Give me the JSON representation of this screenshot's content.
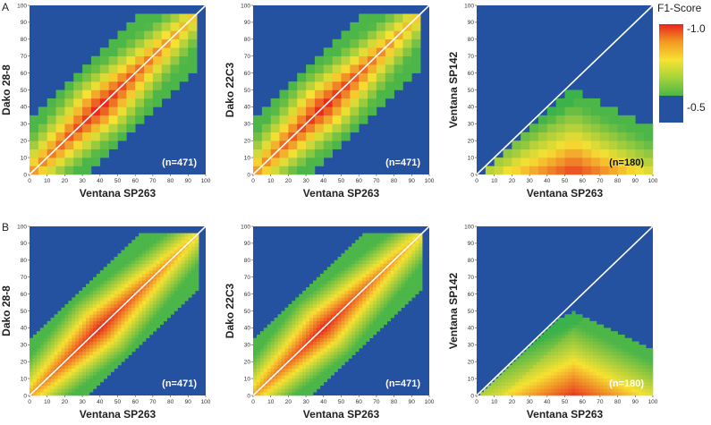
{
  "colors": {
    "background": "#2452a1",
    "diagonal": "#ffffff",
    "high": "#e8231c",
    "mid": "#f7e232",
    "low": "#4cb648"
  },
  "panel_labels": {
    "a": "A",
    "b": "B"
  },
  "legend": {
    "title": "F1-Score",
    "max_label": "-1.0",
    "min_label": "-0.5"
  },
  "chart_data": [
    {
      "type": "heatmap",
      "row": "A",
      "xlabel": "Ventana SP263",
      "ylabel": "Dako 28-8",
      "annotation": "(n=471)",
      "xlim": [
        0,
        100
      ],
      "ylim": [
        0,
        100
      ],
      "ticks": [
        0,
        10,
        20,
        30,
        40,
        50,
        60,
        70,
        80,
        90,
        100
      ],
      "grid_step": 5,
      "model": "equal",
      "spread": 22
    },
    {
      "type": "heatmap",
      "row": "A",
      "xlabel": "Ventana SP263",
      "ylabel": "Dako 22C3",
      "annotation": "(n=471)",
      "xlim": [
        0,
        100
      ],
      "ylim": [
        0,
        100
      ],
      "ticks": [
        0,
        10,
        20,
        30,
        40,
        50,
        60,
        70,
        80,
        90,
        100
      ],
      "grid_step": 5,
      "model": "equal",
      "spread": 22
    },
    {
      "type": "heatmap",
      "row": "A",
      "xlabel": "Ventana SP263",
      "ylabel": "Ventana SP142",
      "annotation": "(n=180)",
      "xlim": [
        0,
        100
      ],
      "ylim": [
        0,
        100
      ],
      "ticks": [
        0,
        10,
        20,
        30,
        40,
        50,
        60,
        70,
        80,
        90,
        100
      ],
      "grid_step": 5,
      "model": "low",
      "spread": 22
    },
    {
      "type": "heatmap",
      "row": "B",
      "xlabel": "Ventana SP263",
      "ylabel": "Dako 28-8",
      "annotation": "(n=471)",
      "xlim": [
        0,
        100
      ],
      "ylim": [
        0,
        100
      ],
      "ticks": [
        0,
        10,
        20,
        30,
        40,
        50,
        60,
        70,
        80,
        90,
        100
      ],
      "grid_step": 2,
      "model": "equal",
      "spread": 22
    },
    {
      "type": "heatmap",
      "row": "B",
      "xlabel": "Ventana SP263",
      "ylabel": "Dako 22C3",
      "annotation": "(n=471)",
      "xlim": [
        0,
        100
      ],
      "ylim": [
        0,
        100
      ],
      "ticks": [
        0,
        10,
        20,
        30,
        40,
        50,
        60,
        70,
        80,
        90,
        100
      ],
      "grid_step": 2,
      "model": "equal",
      "spread": 22
    },
    {
      "type": "heatmap",
      "row": "B",
      "xlabel": "Ventana SP263",
      "ylabel": "Ventana SP142",
      "annotation": "(n=180)",
      "xlim": [
        0,
        100
      ],
      "ylim": [
        0,
        100
      ],
      "ticks": [
        0,
        10,
        20,
        30,
        40,
        50,
        60,
        70,
        80,
        90,
        100
      ],
      "grid_step": 2,
      "model": "low",
      "spread": 22
    }
  ]
}
